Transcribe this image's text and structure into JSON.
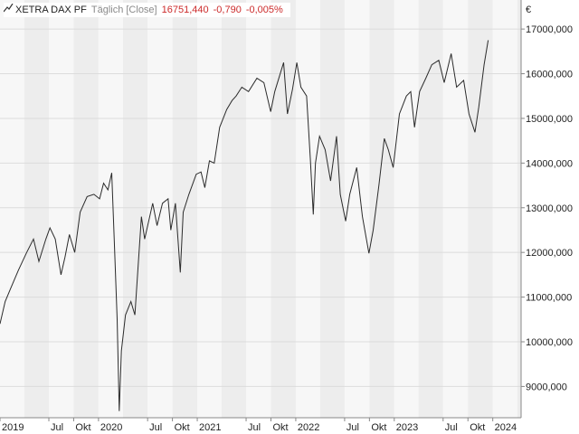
{
  "header": {
    "instrument": "XETRA DAX PF",
    "period": "Täglich [Close]",
    "last": "16751,440",
    "change": "-0,790",
    "change_pct": "-0,005%",
    "icon": "line-chart-icon"
  },
  "colors": {
    "line": "#2b2b2b",
    "band_a": "#f7f7f7",
    "band_b": "#ededed",
    "grid": "#dcdcdc",
    "axis": "#888888",
    "change_negative": "#cc2b2b"
  },
  "chart_data": {
    "type": "line",
    "title": "",
    "currency_label": "€",
    "y_axis_side": "right",
    "ylim": [
      8300,
      17650
    ],
    "y_ticks": [
      9000,
      10000,
      11000,
      12000,
      13000,
      14000,
      15000,
      16000,
      17000
    ],
    "y_tick_labels": [
      "9000,000",
      "10000,000",
      "11000,000",
      "12000,000",
      "13000,000",
      "14000,000",
      "15000,000",
      "16000,000",
      "17000,000"
    ],
    "xlim": [
      "2019-01-01",
      "2024-04-15"
    ],
    "x_ticks": [
      "2019-01-01",
      "2019-07-01",
      "2019-10-01",
      "2020-01-01",
      "2020-07-01",
      "2020-10-01",
      "2021-01-01",
      "2021-07-01",
      "2021-10-01",
      "2022-01-01",
      "2022-07-01",
      "2022-10-01",
      "2023-01-01",
      "2023-07-01",
      "2023-10-01",
      "2024-01-01"
    ],
    "x_tick_labels": [
      "2019",
      "Jul",
      "Okt",
      "2020",
      "Jul",
      "Okt",
      "2021",
      "Jul",
      "Okt",
      "2022",
      "Jul",
      "Okt",
      "2023",
      "Jul",
      "Okt",
      "2024"
    ],
    "grid": true,
    "series": [
      {
        "points": [
          [
            "2019-01-01",
            10400
          ],
          [
            "2019-01-20",
            10900
          ],
          [
            "2019-02-10",
            11200
          ],
          [
            "2019-03-10",
            11600
          ],
          [
            "2019-04-10",
            12000
          ],
          [
            "2019-05-05",
            12300
          ],
          [
            "2019-05-25",
            11800
          ],
          [
            "2019-06-20",
            12300
          ],
          [
            "2019-07-05",
            12550
          ],
          [
            "2019-07-25",
            12300
          ],
          [
            "2019-08-15",
            11500
          ],
          [
            "2019-08-30",
            11900
          ],
          [
            "2019-09-15",
            12400
          ],
          [
            "2019-10-05",
            12000
          ],
          [
            "2019-10-25",
            12900
          ],
          [
            "2019-11-20",
            13250
          ],
          [
            "2019-12-15",
            13300
          ],
          [
            "2020-01-05",
            13200
          ],
          [
            "2020-01-20",
            13550
          ],
          [
            "2020-02-05",
            13400
          ],
          [
            "2020-02-19",
            13780
          ],
          [
            "2020-03-01",
            12000
          ],
          [
            "2020-03-10",
            10500
          ],
          [
            "2020-03-18",
            8450
          ],
          [
            "2020-03-26",
            9800
          ],
          [
            "2020-04-10",
            10600
          ],
          [
            "2020-04-30",
            10900
          ],
          [
            "2020-05-15",
            10600
          ],
          [
            "2020-06-08",
            12800
          ],
          [
            "2020-06-20",
            12300
          ],
          [
            "2020-07-20",
            13100
          ],
          [
            "2020-08-05",
            12600
          ],
          [
            "2020-08-25",
            13100
          ],
          [
            "2020-09-15",
            13200
          ],
          [
            "2020-09-25",
            12500
          ],
          [
            "2020-10-12",
            13100
          ],
          [
            "2020-10-30",
            11550
          ],
          [
            "2020-11-10",
            12900
          ],
          [
            "2020-12-01",
            13300
          ],
          [
            "2020-12-28",
            13750
          ],
          [
            "2021-01-15",
            13800
          ],
          [
            "2021-01-29",
            13450
          ],
          [
            "2021-02-15",
            14050
          ],
          [
            "2021-03-05",
            14000
          ],
          [
            "2021-03-25",
            14800
          ],
          [
            "2021-04-20",
            15200
          ],
          [
            "2021-05-10",
            15400
          ],
          [
            "2021-05-25",
            15500
          ],
          [
            "2021-06-15",
            15700
          ],
          [
            "2021-07-10",
            15600
          ],
          [
            "2021-08-10",
            15900
          ],
          [
            "2021-09-05",
            15800
          ],
          [
            "2021-09-30",
            15150
          ],
          [
            "2021-10-15",
            15600
          ],
          [
            "2021-11-17",
            16250
          ],
          [
            "2021-12-01",
            15100
          ],
          [
            "2021-12-20",
            15650
          ],
          [
            "2022-01-05",
            16250
          ],
          [
            "2022-01-20",
            15700
          ],
          [
            "2022-02-10",
            15500
          ],
          [
            "2022-02-24",
            14100
          ],
          [
            "2022-03-07",
            12850
          ],
          [
            "2022-03-15",
            14000
          ],
          [
            "2022-03-30",
            14600
          ],
          [
            "2022-04-20",
            14300
          ],
          [
            "2022-05-10",
            13600
          ],
          [
            "2022-06-01",
            14600
          ],
          [
            "2022-06-15",
            13300
          ],
          [
            "2022-07-05",
            12700
          ],
          [
            "2022-07-20",
            13300
          ],
          [
            "2022-08-15",
            13900
          ],
          [
            "2022-09-05",
            12800
          ],
          [
            "2022-09-29",
            11980
          ],
          [
            "2022-10-15",
            12500
          ],
          [
            "2022-11-05",
            13500
          ],
          [
            "2022-11-25",
            14550
          ],
          [
            "2022-12-10",
            14300
          ],
          [
            "2022-12-28",
            13900
          ],
          [
            "2023-01-20",
            15100
          ],
          [
            "2023-02-15",
            15500
          ],
          [
            "2023-03-03",
            15600
          ],
          [
            "2023-03-17",
            14800
          ],
          [
            "2023-04-05",
            15600
          ],
          [
            "2023-04-28",
            15900
          ],
          [
            "2023-05-20",
            16200
          ],
          [
            "2023-06-15",
            16300
          ],
          [
            "2023-07-05",
            15800
          ],
          [
            "2023-07-31",
            16450
          ],
          [
            "2023-08-20",
            15700
          ],
          [
            "2023-09-15",
            15850
          ],
          [
            "2023-10-05",
            15100
          ],
          [
            "2023-10-27",
            14690
          ],
          [
            "2023-11-10",
            15250
          ],
          [
            "2023-11-30",
            16200
          ],
          [
            "2023-12-15",
            16750
          ]
        ]
      }
    ]
  }
}
